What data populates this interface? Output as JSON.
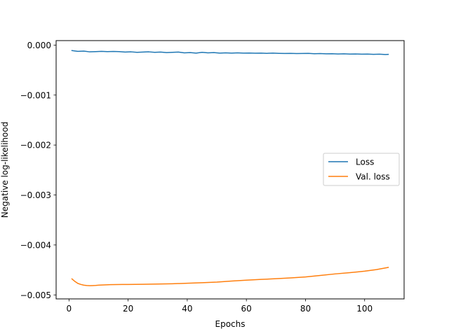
{
  "chart_data": {
    "type": "line",
    "xlabel": "Epochs",
    "ylabel": "Negative log-likelihood",
    "xlim": [
      -4.35,
      113.35
    ],
    "ylim": [
      -0.00508,
      9e-05
    ],
    "xticks": [
      0,
      20,
      40,
      60,
      80,
      100
    ],
    "xtick_labels": [
      "0",
      "20",
      "40",
      "60",
      "80",
      "100"
    ],
    "yticks": [
      0.0,
      -0.001,
      -0.002,
      -0.003,
      -0.004,
      -0.005
    ],
    "ytick_labels": [
      "0.000",
      "−0.001",
      "−0.002",
      "−0.003",
      "−0.004",
      "−0.005"
    ],
    "grid": false,
    "legend_position": "center-right",
    "series": [
      {
        "name": "Loss",
        "color": "#1f77b4",
        "points": [
          [
            1,
            -0.00011
          ],
          [
            3,
            -0.000125
          ],
          [
            5,
            -0.00012
          ],
          [
            7,
            -0.000135
          ],
          [
            9,
            -0.00013
          ],
          [
            11,
            -0.000125
          ],
          [
            13,
            -0.00013
          ],
          [
            15,
            -0.000128
          ],
          [
            17,
            -0.00013
          ],
          [
            19,
            -0.00014
          ],
          [
            21,
            -0.000135
          ],
          [
            23,
            -0.000145
          ],
          [
            25,
            -0.00014
          ],
          [
            27,
            -0.000135
          ],
          [
            29,
            -0.000145
          ],
          [
            31,
            -0.00014
          ],
          [
            33,
            -0.00015
          ],
          [
            35,
            -0.000145
          ],
          [
            37,
            -0.00014
          ],
          [
            39,
            -0.000155
          ],
          [
            41,
            -0.00015
          ],
          [
            43,
            -0.00016
          ],
          [
            45,
            -0.000145
          ],
          [
            47,
            -0.000155
          ],
          [
            49,
            -0.00015
          ],
          [
            51,
            -0.00016
          ],
          [
            53,
            -0.000155
          ],
          [
            55,
            -0.00016
          ],
          [
            57,
            -0.000155
          ],
          [
            59,
            -0.00016
          ],
          [
            61,
            -0.000158
          ],
          [
            63,
            -0.000162
          ],
          [
            65,
            -0.00016
          ],
          [
            67,
            -0.000165
          ],
          [
            69,
            -0.00016
          ],
          [
            71,
            -0.000165
          ],
          [
            73,
            -0.000168
          ],
          [
            75,
            -0.000165
          ],
          [
            77,
            -0.00017
          ],
          [
            79,
            -0.000168
          ],
          [
            81,
            -0.000165
          ],
          [
            83,
            -0.000172
          ],
          [
            85,
            -0.00017
          ],
          [
            87,
            -0.000175
          ],
          [
            89,
            -0.000172
          ],
          [
            91,
            -0.000178
          ],
          [
            93,
            -0.000175
          ],
          [
            95,
            -0.00018
          ],
          [
            97,
            -0.000178
          ],
          [
            99,
            -0.000182
          ],
          [
            101,
            -0.00018
          ],
          [
            103,
            -0.000185
          ],
          [
            105,
            -0.000182
          ],
          [
            107,
            -0.000188
          ],
          [
            108,
            -0.000185
          ]
        ]
      },
      {
        "name": "Val. loss",
        "color": "#ff7f0e",
        "points": [
          [
            1,
            -0.00468
          ],
          [
            2,
            -0.00473
          ],
          [
            3,
            -0.00477
          ],
          [
            4,
            -0.00479
          ],
          [
            5,
            -0.004805
          ],
          [
            6,
            -0.004812
          ],
          [
            7,
            -0.004815
          ],
          [
            8,
            -0.004813
          ],
          [
            9,
            -0.00481
          ],
          [
            10,
            -0.004805
          ],
          [
            12,
            -0.0048
          ],
          [
            14,
            -0.004795
          ],
          [
            16,
            -0.004793
          ],
          [
            18,
            -0.004791
          ],
          [
            20,
            -0.004791
          ],
          [
            25,
            -0.004787
          ],
          [
            30,
            -0.004782
          ],
          [
            35,
            -0.004777
          ],
          [
            40,
            -0.004766
          ],
          [
            45,
            -0.004756
          ],
          [
            50,
            -0.004743
          ],
          [
            55,
            -0.004723
          ],
          [
            60,
            -0.004706
          ],
          [
            65,
            -0.00469
          ],
          [
            70,
            -0.004676
          ],
          [
            75,
            -0.004659
          ],
          [
            80,
            -0.00464
          ],
          [
            85,
            -0.00461
          ],
          [
            90,
            -0.00458
          ],
          [
            95,
            -0.004555
          ],
          [
            100,
            -0.004525
          ],
          [
            104,
            -0.004493
          ],
          [
            108,
            -0.00445
          ]
        ]
      }
    ]
  }
}
